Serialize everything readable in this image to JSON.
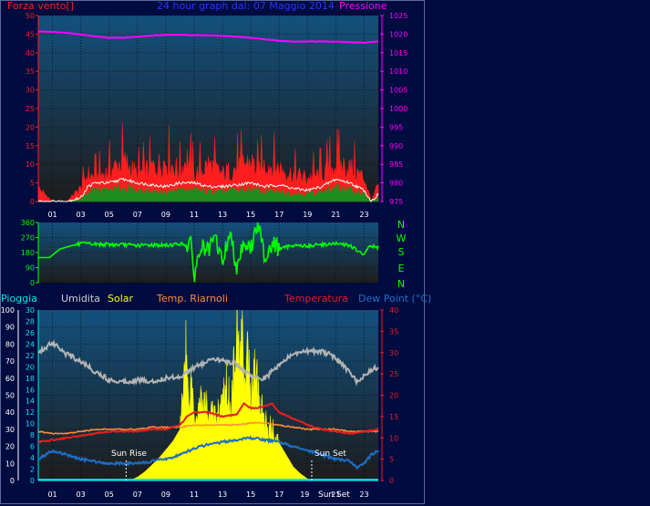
{
  "header": {
    "left_label": "Forza vento[]",
    "title": "24 hour graph dal: 07 Maggio 2014",
    "right_label": "Pressione"
  },
  "direction_axis": {
    "labels": [
      "N",
      "W",
      "S",
      "E",
      "N"
    ]
  },
  "bottom_legend": {
    "rain": "Pioggia",
    "humidity": "Umidita",
    "solar": "Solar",
    "feels": "Temp. Riarnoli",
    "temperature": "Temperatura",
    "dewpoint": "Dew Point (°C)"
  },
  "annotations": {
    "sunrise": "Sun Rise",
    "sunset": "Sun Set"
  },
  "colors": {
    "background": "#000b40",
    "plot_top": "#13507d",
    "plot_bottom": "#1d1d1d",
    "wind": "#ff1e1e",
    "gust": "#ffffff",
    "avg_wind": "#1e8c1e",
    "pressure": "#ff00ff",
    "direction": "#00ff00",
    "humidity": "#b4b4b4",
    "solar": "#ffff00",
    "feels": "#ff8c3c",
    "temperature": "#e61e1e",
    "dewpoint": "#1e6ec8",
    "rain": "#00e6e6"
  },
  "chart_data": [
    {
      "type": "line",
      "name": "wind-pressure",
      "x_ticks": [
        "01",
        "03",
        "05",
        "07",
        "09",
        "11",
        "13",
        "15",
        "17",
        "19",
        "21",
        "23"
      ],
      "xlim": [
        0,
        24
      ],
      "y_left_ticks": [
        "0",
        "5",
        "10",
        "15",
        "20",
        "25",
        "30",
        "35",
        "40",
        "45",
        "50"
      ],
      "ylim_left": [
        0,
        50
      ],
      "y_right_ticks": [
        "975",
        "980",
        "985",
        "990",
        "995",
        "1000",
        "1005",
        "1010",
        "1015",
        "1020",
        "1025"
      ],
      "ylim_right": [
        975,
        1025
      ],
      "series": [
        {
          "key": "pressure",
          "axis": "right",
          "x": [
            0,
            1,
            2,
            3,
            4,
            5,
            6,
            7,
            8,
            9,
            10,
            11,
            12,
            13,
            14,
            15,
            16,
            17,
            18,
            19,
            20,
            21,
            22,
            23,
            24
          ],
          "values": [
            1020.7,
            1020.6,
            1020.3,
            1019.9,
            1019.4,
            1019.0,
            1019.0,
            1019.3,
            1019.6,
            1019.8,
            1019.8,
            1019.7,
            1019.7,
            1019.5,
            1019.3,
            1019.0,
            1018.6,
            1018.2,
            1018.0,
            1018.0,
            1018.0,
            1018.0,
            1017.8,
            1017.7,
            1018.0
          ]
        },
        {
          "key": "wind",
          "axis": "left",
          "x": [
            0,
            0.5,
            1,
            2,
            3,
            3.5,
            4,
            5,
            6,
            7,
            8,
            9,
            10,
            10.5,
            11,
            11.5,
            12,
            13,
            14,
            15,
            15.5,
            16,
            17,
            18,
            19,
            20,
            21,
            22,
            23,
            23.5,
            24
          ],
          "values": [
            4,
            2,
            0,
            0,
            4,
            8,
            7,
            9,
            12,
            8,
            10,
            12,
            9,
            13,
            8,
            9,
            11,
            8,
            10,
            12,
            9,
            11,
            10,
            8,
            7,
            8,
            11,
            10,
            7,
            0,
            5
          ]
        },
        {
          "key": "gust",
          "axis": "left",
          "x": [
            0,
            1,
            2,
            3,
            3.5,
            4,
            5,
            6,
            7,
            8,
            9,
            10,
            11,
            12,
            13,
            14,
            15,
            16,
            17,
            18,
            19,
            20,
            21,
            22,
            23,
            23.5,
            24
          ],
          "values": [
            0,
            0,
            0,
            1,
            4,
            5,
            5,
            6,
            5,
            4.5,
            4,
            5,
            5,
            4,
            4,
            4.5,
            5,
            4,
            4.5,
            3.5,
            3,
            4,
            6,
            5,
            3,
            0,
            2
          ]
        },
        {
          "key": "avg_wind",
          "axis": "left",
          "x": [
            0,
            1,
            2,
            3,
            3.5,
            4,
            5,
            6,
            7,
            8,
            9,
            10,
            11,
            12,
            13,
            14,
            15,
            16,
            17,
            18,
            19,
            20,
            21,
            22,
            23,
            23.5,
            24
          ],
          "values": [
            0,
            0,
            0,
            0.5,
            2.5,
            3,
            3,
            3.5,
            3,
            2.5,
            2.5,
            3,
            3,
            2.5,
            2.5,
            3,
            3,
            2.5,
            2.5,
            2,
            2,
            2.5,
            3.5,
            3,
            2,
            0,
            1
          ]
        }
      ]
    },
    {
      "type": "line",
      "name": "wind-direction",
      "x_ticks": [
        "01",
        "03",
        "05",
        "07",
        "09",
        "11",
        "13",
        "15",
        "17",
        "19",
        "21",
        "23"
      ],
      "xlim": [
        0,
        24
      ],
      "y_ticks": [
        "0",
        "90",
        "180",
        "270",
        "360"
      ],
      "ylim": [
        0,
        360
      ],
      "series": [
        {
          "key": "direction",
          "x": [
            0,
            0.8,
            1.5,
            2.5,
            3,
            4,
            5,
            6,
            7,
            8,
            9,
            10,
            10.8,
            11,
            11.5,
            12,
            12.5,
            13,
            13.5,
            14,
            14.5,
            15,
            15.5,
            16,
            16.5,
            17,
            18,
            19,
            20,
            21,
            22,
            23,
            23.3,
            24
          ],
          "values": [
            150,
            150,
            200,
            225,
            232,
            230,
            228,
            226,
            222,
            226,
            222,
            232,
            220,
            40,
            220,
            180,
            270,
            120,
            300,
            100,
            250,
            200,
            360,
            150,
            240,
            200,
            225,
            218,
            228,
            232,
            224,
            160,
            220,
            210
          ]
        }
      ]
    },
    {
      "type": "line",
      "name": "temperature-humidity-solar",
      "x_ticks": [
        "01",
        "03",
        "05",
        "07",
        "09",
        "11",
        "13",
        "15",
        "17",
        "19",
        "21",
        "23"
      ],
      "xlim": [
        0,
        24
      ],
      "y_humidity_ticks": [
        "0",
        "10",
        "20",
        "30",
        "40",
        "50",
        "60",
        "70",
        "80",
        "90",
        "100"
      ],
      "ylim_humidity": [
        0,
        100
      ],
      "y_rain_ticks": [
        "0",
        "2",
        "4",
        "6",
        "8",
        "10",
        "12",
        "14",
        "16",
        "18",
        "20",
        "22",
        "24",
        "26",
        "28",
        "30"
      ],
      "ylim_rain": [
        0,
        30
      ],
      "y_temp_ticks": [
        "0",
        "5",
        "10",
        "15",
        "20",
        "25",
        "30",
        "35",
        "40"
      ],
      "ylim_temp": [
        0,
        40
      ],
      "series": [
        {
          "key": "humidity",
          "axis": "humidity",
          "x": [
            0,
            0.5,
            1,
            1.5,
            2,
            3,
            4,
            5,
            6,
            7,
            8,
            9,
            10,
            11,
            12,
            13,
            14,
            15,
            16,
            16.5,
            17,
            18,
            19,
            20,
            21,
            22,
            22.5,
            23,
            23.5,
            24
          ],
          "values": [
            74,
            78,
            81,
            78,
            74,
            70,
            64,
            59,
            58,
            59,
            58,
            60,
            61,
            66,
            70,
            71,
            68,
            61,
            60,
            64,
            68,
            74,
            76,
            76,
            72,
            63,
            58,
            62,
            65,
            66
          ]
        },
        {
          "key": "feels",
          "axis": "temp",
          "x": [
            0,
            1,
            2,
            3,
            4,
            5,
            6,
            7,
            8,
            9,
            10,
            11,
            12,
            13,
            14,
            15,
            16,
            17,
            18,
            19,
            20,
            21,
            22,
            23,
            24
          ],
          "values": [
            11.5,
            11,
            11,
            11.5,
            12,
            12,
            12,
            12,
            12.5,
            12.5,
            12.5,
            13,
            13,
            13,
            13,
            13.5,
            13.5,
            13,
            12.5,
            12,
            12,
            12,
            11.5,
            11.5,
            11.5
          ]
        },
        {
          "key": "temperature",
          "axis": "temp",
          "x": [
            0,
            1,
            2,
            3,
            4,
            5,
            6,
            7,
            8,
            9,
            10,
            10.5,
            11,
            12,
            13,
            14,
            14.5,
            15,
            15.5,
            16,
            16.5,
            17,
            18,
            19,
            20,
            21,
            22,
            23,
            24
          ],
          "values": [
            9,
            9.5,
            10,
            10.5,
            11,
            11.5,
            11.5,
            11.5,
            12,
            12,
            13,
            15,
            16,
            16,
            15,
            15.5,
            18,
            17,
            17,
            17.5,
            18,
            16,
            14.5,
            13,
            12,
            11.5,
            11,
            11.5,
            12
          ]
        },
        {
          "key": "dewpoint",
          "axis": "temp",
          "x": [
            0,
            0.5,
            1,
            2,
            3,
            4,
            5,
            6,
            7,
            8,
            9,
            10,
            11,
            12,
            13,
            14,
            15,
            16,
            17,
            18,
            19,
            20,
            21,
            22,
            22.5,
            23,
            23.5,
            24
          ],
          "values": [
            5,
            6,
            7,
            6,
            5,
            4.5,
            4,
            4,
            4,
            4.5,
            5,
            6,
            7.5,
            8.5,
            9,
            9.5,
            10,
            9.5,
            9,
            8,
            7,
            6,
            5,
            4.5,
            3,
            4,
            6,
            7
          ]
        },
        {
          "key": "solar",
          "axis": "humidity",
          "x": [
            6.5,
            7,
            7.5,
            8,
            8.5,
            9,
            9.5,
            10,
            10.2,
            10.4,
            10.6,
            10.8,
            11,
            11.5,
            12,
            12.5,
            13,
            13.3,
            13.6,
            14,
            14.2,
            14.4,
            14.6,
            14.8,
            15,
            15.3,
            15.6,
            16,
            16.5,
            17,
            17.5,
            18,
            18.5,
            19,
            19.5
          ],
          "values": [
            0,
            2,
            5,
            9,
            13,
            18,
            23,
            30,
            50,
            85,
            45,
            62,
            38,
            47,
            41,
            38,
            45,
            58,
            42,
            95,
            70,
            92,
            52,
            78,
            47,
            70,
            45,
            36,
            30,
            22,
            15,
            8,
            4,
            1,
            0
          ]
        },
        {
          "key": "rain",
          "axis": "rain",
          "x": [
            0,
            24
          ],
          "values": [
            0.1,
            0.1
          ]
        }
      ],
      "sunrise_x": 6.2,
      "sunset_x": 19.3
    }
  ]
}
